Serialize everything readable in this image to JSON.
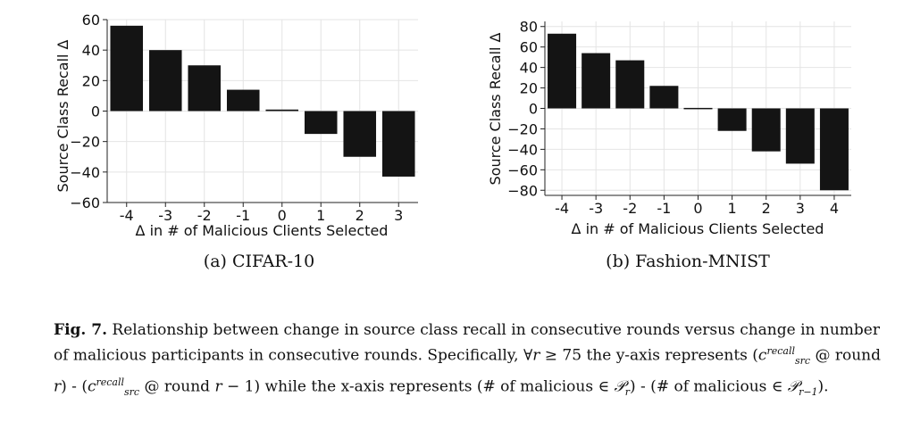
{
  "chart_data": [
    {
      "type": "bar",
      "categories": [
        "-4",
        "-3",
        "-2",
        "-1",
        "0",
        "1",
        "2",
        "3"
      ],
      "values": [
        56,
        40,
        30,
        14,
        1,
        -15,
        -30,
        -43
      ],
      "xlabel": "Δ in # of Malicious Clients Selected",
      "ylabel": "Source Class Recall Δ",
      "ylim": [
        -60,
        60
      ],
      "yticks": [
        "60",
        "40",
        "20",
        "0",
        "−20",
        "−40",
        "−60"
      ],
      "grid": true,
      "color": "#141414"
    },
    {
      "type": "bar",
      "categories": [
        "-4",
        "-3",
        "-2",
        "-1",
        "0",
        "1",
        "2",
        "3",
        "4"
      ],
      "values": [
        73,
        54,
        47,
        22,
        0.5,
        -22,
        -42,
        -54,
        -80
      ],
      "xlabel": "Δ in # of Malicious Clients Selected",
      "ylabel": "Source Class Recall Δ",
      "ylim": [
        -85,
        85
      ],
      "yticks": [
        "80",
        "60",
        "40",
        "20",
        "0",
        "−20",
        "−40",
        "−60",
        "−80"
      ],
      "grid": true,
      "color": "#141414"
    }
  ],
  "subcaptions": [
    "(a) CIFAR-10",
    "(b) Fashion-MNIST"
  ],
  "caption": {
    "label": "Fig. 7.",
    "line1": " Relationship between change in source class recall in consecutive rounds versus change in number of malicious participants in consecutive rounds. Specifically, ∀",
    "r": "r",
    "ge75": " ≥ 75 the y-axis represents (",
    "c": "c",
    "recall": "recall",
    "src": "src",
    "at_round": " @ round ",
    "minus1": " − 1)",
    "dash": ") - (",
    "while": " while the x-axis represents (# of malicious ∈ ",
    "P": "𝒫",
    "r_sub": "r",
    "r1_sub": "r−1",
    "middle": ") - (# of malicious ∈ ",
    "end": ")."
  }
}
